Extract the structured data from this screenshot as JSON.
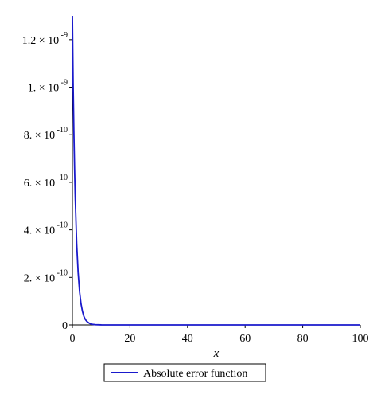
{
  "chart_data": {
    "type": "line",
    "title": "",
    "xlabel": "x",
    "ylabel": "",
    "xlim": [
      0,
      100
    ],
    "ylim": [
      0,
      1.3e-09
    ],
    "x_ticks": [
      {
        "value": 0,
        "label": "0"
      },
      {
        "value": 20,
        "label": "20"
      },
      {
        "value": 40,
        "label": "40"
      },
      {
        "value": 60,
        "label": "60"
      },
      {
        "value": 80,
        "label": "80"
      },
      {
        "value": 100,
        "label": "100"
      }
    ],
    "y_ticks": [
      {
        "value": 0,
        "mantissa": "0",
        "exponent": ""
      },
      {
        "value": 2e-10,
        "mantissa": "2. × 10",
        "exponent": "-10"
      },
      {
        "value": 4e-10,
        "mantissa": "4. × 10",
        "exponent": "-10"
      },
      {
        "value": 6e-10,
        "mantissa": "6. × 10",
        "exponent": "-10"
      },
      {
        "value": 8e-10,
        "mantissa": "8. × 10",
        "exponent": "-10"
      },
      {
        "value": 1e-09,
        "mantissa": "1. × 10",
        "exponent": "-9"
      },
      {
        "value": 1.2e-09,
        "mantissa": "1.2 × 10",
        "exponent": "-9"
      }
    ],
    "grid": false,
    "legend_position": "bottom-center",
    "series": [
      {
        "name": "Absolute error function",
        "color": "#1a1acc",
        "x": [
          0,
          0.25,
          0.5,
          0.75,
          1,
          1.5,
          2,
          2.5,
          3,
          3.5,
          4,
          4.5,
          5,
          6,
          7,
          8,
          10,
          15,
          20,
          30,
          40,
          50,
          60,
          70,
          80,
          90,
          100
        ],
        "y": [
          1.3e-09,
          1.02e-09,
          8.2e-10,
          6.6e-10,
          5.3e-10,
          3.4e-10,
          2.2e-10,
          1.4e-10,
          8.9e-11,
          5.7e-11,
          3.6e-11,
          2.3e-11,
          1.5e-11,
          6e-12,
          2.4e-12,
          1e-12,
          2e-13,
          0,
          0,
          0,
          0,
          0,
          0,
          0,
          0,
          0,
          0
        ]
      }
    ]
  }
}
